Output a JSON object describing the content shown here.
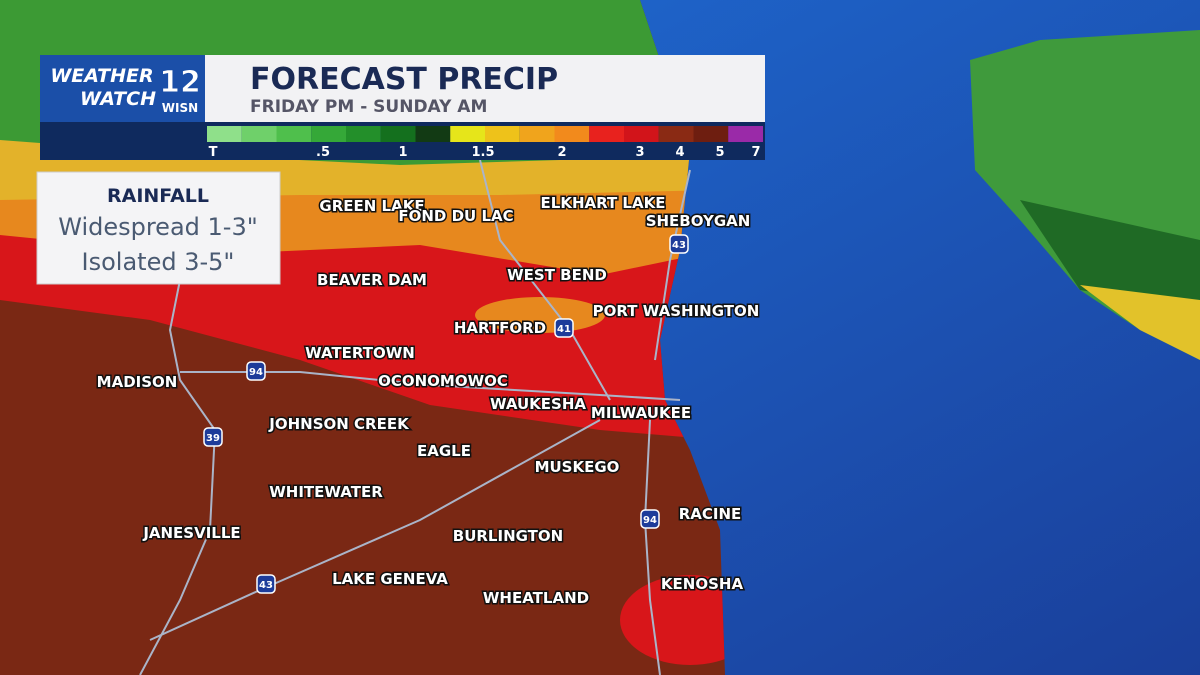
{
  "logo": {
    "line1": "WEATHER",
    "line2": "WATCH",
    "channel": "12",
    "station": "WISN"
  },
  "header": {
    "title": "FORECAST PRECIP",
    "subtitle": "FRIDAY PM - SUNDAY AM"
  },
  "legend": {
    "colors": [
      "#8fe08a",
      "#6fd06a",
      "#4fbf4c",
      "#35a838",
      "#238f2a",
      "#14701e",
      "#123a14",
      "#e6e51a",
      "#eec21a",
      "#f0a41c",
      "#f28a1c",
      "#e8221e",
      "#d2141a",
      "#8a2a14",
      "#6e1e10",
      "#9a2aa8"
    ],
    "labels": [
      "T",
      ".5",
      "1",
      "1.5",
      "2",
      "3",
      "4",
      "5",
      "7"
    ]
  },
  "info_box": {
    "title": "RAINFALL",
    "line1": "Widespread 1-3\"",
    "line2": "Isolated 3-5\""
  },
  "cities": [
    "GREEN LAKE",
    "FOND DU LAC",
    "ELKHART LAKE",
    "SHEBOYGAN",
    "BEAVER DAM",
    "WEST BEND",
    "PORT WASHINGTON",
    "HARTFORD",
    "WATERTOWN",
    "MADISON",
    "OCONOMOWOC",
    "WAUKESHA",
    "MILWAUKEE",
    "JOHNSON CREEK",
    "EAGLE",
    "MUSKEGO",
    "WHITEWATER",
    "RACINE",
    "JANESVILLE",
    "BURLINGTON",
    "LAKE GENEVA",
    "KENOSHA",
    "WHEATLAND"
  ],
  "highways": [
    "43",
    "41",
    "94",
    "39",
    "94",
    "43"
  ]
}
